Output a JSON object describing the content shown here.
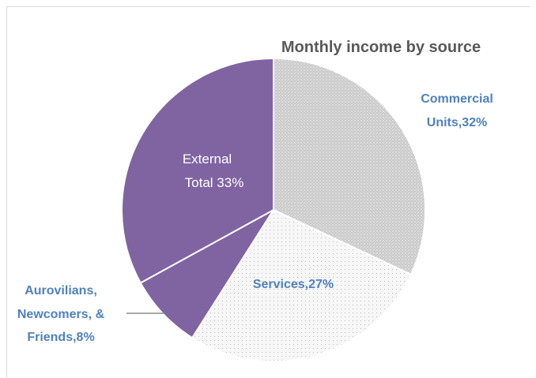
{
  "chart_data": {
    "type": "pie",
    "title": "Monthly income by source",
    "slices": [
      {
        "label": "Commercial Units,32%",
        "lines": [
          "Commercial",
          "Units,32%"
        ],
        "value": 32,
        "color": "#c9c9c9",
        "pattern": "dots-dark"
      },
      {
        "label": "Services,27%",
        "lines": [
          "Services,27%"
        ],
        "value": 27,
        "color": "#f4f4f4",
        "pattern": "dots-light"
      },
      {
        "label": "Aurovilians, Newcomers, & Friends,8%",
        "lines": [
          "Aurovilians,",
          "Newcomers, &",
          "Friends,8%"
        ],
        "value": 8,
        "color": "#8064a2",
        "pattern": "none"
      },
      {
        "label": "External Total 33%",
        "lines": [
          "External",
          "Total 33%"
        ],
        "value": 33,
        "color": "#8064a2",
        "pattern": "none"
      }
    ],
    "label_color": "#4f81bd",
    "inner_label_color": "#ffffff",
    "title_color": "#595959"
  }
}
